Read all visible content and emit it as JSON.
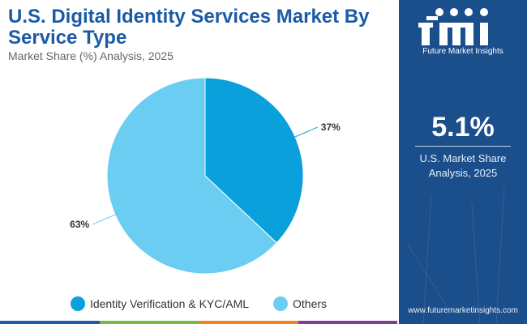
{
  "header": {
    "title": "U.S. Digital Identity Services Market By Service Type",
    "subtitle": "Market Share (%) Analysis, 2025"
  },
  "chart_data": {
    "type": "pie",
    "title": "U.S. Digital Identity Services Market By Service Type",
    "subtitle": "Market Share (%) Analysis, 2025",
    "categories": [
      "Identity Verification & KYC/AML",
      "Others"
    ],
    "values": [
      37,
      63
    ],
    "labels": [
      "37%",
      "63%"
    ],
    "colors": [
      "#0aa0dc",
      "#6ccdf2"
    ],
    "legend_position": "bottom"
  },
  "sidebar": {
    "logo_text": "Future Market Insights",
    "share_value": "5.1%",
    "share_label_line1": "U.S. Market Share",
    "share_label_line2": "Analysis, 2025",
    "website": "www.futuremarketinsights.com",
    "background_color": "#1b4f8c"
  },
  "bottom_bar_colors": [
    "#1b5ba6",
    "#7ab648",
    "#f58220",
    "#7b3f98"
  ]
}
